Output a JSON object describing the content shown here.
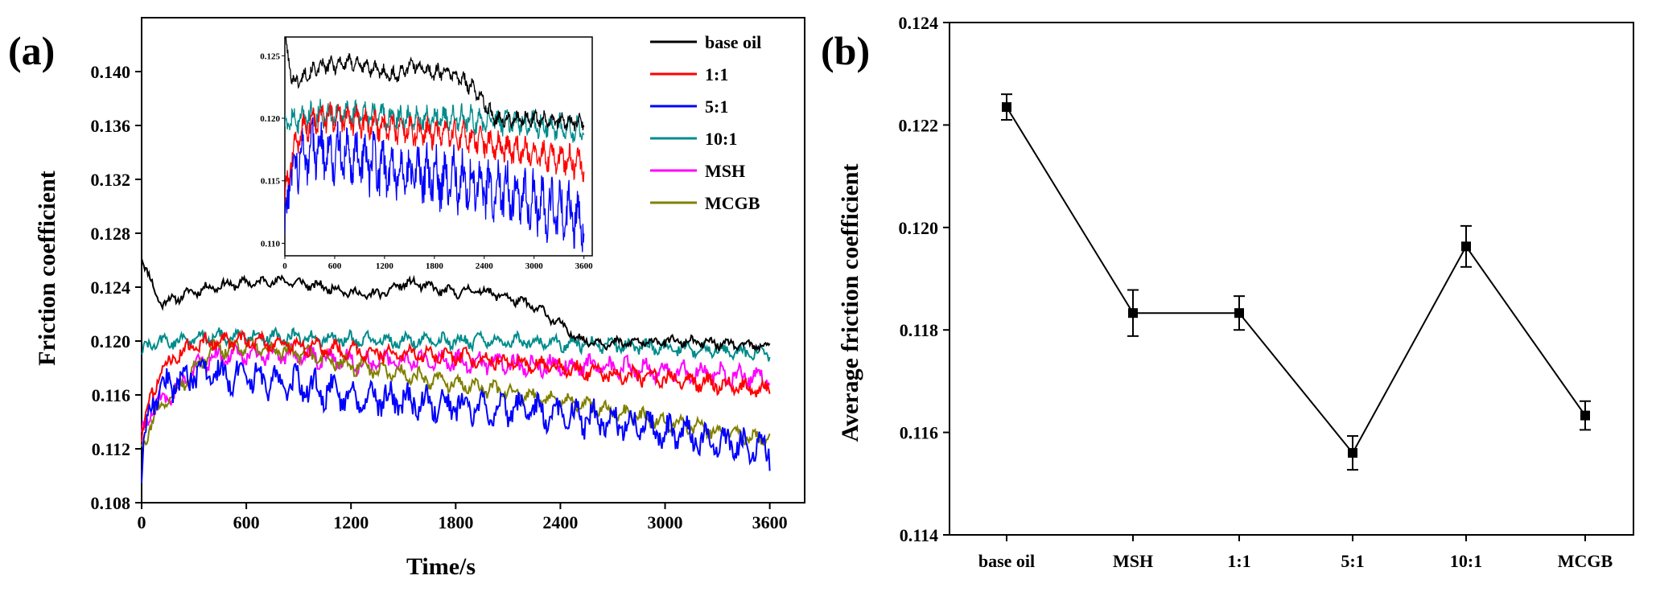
{
  "chart_data": [
    {
      "panel": "(a)",
      "type": "line",
      "title": "",
      "xlabel": "Time/s",
      "ylabel": "Friction coefficient",
      "xlim": [
        0,
        3800
      ],
      "ylim": [
        0.108,
        0.144
      ],
      "xticks": [
        "0",
        "600",
        "1200",
        "1800",
        "2400",
        "3000",
        "3600"
      ],
      "yticks": [
        "0.108",
        "0.112",
        "0.116",
        "0.120",
        "0.124",
        "0.128",
        "0.132",
        "0.136",
        "0.140"
      ],
      "legend_position": "top-right",
      "series": [
        {
          "name": "base oil",
          "color": "#000000",
          "x": [
            0,
            20,
            50,
            80,
            120,
            200,
            300,
            400,
            500,
            600,
            700,
            800,
            900,
            1000,
            1100,
            1200,
            1300,
            1400,
            1500,
            1600,
            1700,
            1800,
            1900,
            2000,
            2100,
            2200,
            2300,
            2400,
            2500,
            2600,
            2700,
            2800,
            2900,
            3000,
            3200,
            3400,
            3600
          ],
          "y": [
            0.1265,
            0.1255,
            0.1245,
            0.1235,
            0.1228,
            0.1232,
            0.1237,
            0.124,
            0.1242,
            0.1243,
            0.1244,
            0.1245,
            0.1243,
            0.1241,
            0.1239,
            0.1236,
            0.1234,
            0.1236,
            0.1243,
            0.1242,
            0.1238,
            0.1236,
            0.1238,
            0.1236,
            0.1232,
            0.1228,
            0.1222,
            0.1212,
            0.1202,
            0.1199,
            0.1198,
            0.1199,
            0.1199,
            0.12,
            0.1199,
            0.1197,
            0.1196
          ],
          "noise": 0.0005
        },
        {
          "name": "1:1",
          "color": "#ff0000",
          "x": [
            0,
            30,
            60,
            100,
            200,
            300,
            400,
            600,
            800,
            1000,
            1200,
            1500,
            1800,
            2100,
            2400,
            2700,
            3000,
            3300,
            3600
          ],
          "y": [
            0.113,
            0.115,
            0.116,
            0.1175,
            0.119,
            0.1196,
            0.12,
            0.12,
            0.1198,
            0.1195,
            0.1193,
            0.119,
            0.1188,
            0.1185,
            0.118,
            0.1175,
            0.1172,
            0.1168,
            0.1163
          ],
          "noise": 0.0008
        },
        {
          "name": "5:1",
          "color": "#0000ff",
          "x": [
            0,
            30,
            60,
            100,
            200,
            300,
            400,
            600,
            800,
            1000,
            1200,
            1500,
            1800,
            2100,
            2400,
            2700,
            3000,
            3300,
            3600
          ],
          "y": [
            0.11,
            0.114,
            0.1158,
            0.1162,
            0.117,
            0.1175,
            0.1176,
            0.1172,
            0.117,
            0.1165,
            0.116,
            0.1155,
            0.1152,
            0.115,
            0.1145,
            0.114,
            0.1132,
            0.1125,
            0.1118
          ],
          "noise": 0.0016
        },
        {
          "name": "10:1",
          "color": "#008b8b",
          "x": [
            0,
            30,
            60,
            100,
            200,
            400,
            600,
            800,
            1000,
            1200,
            1500,
            1800,
            2100,
            2400,
            2700,
            3000,
            3300,
            3600
          ],
          "y": [
            0.119,
            0.1196,
            0.1198,
            0.1199,
            0.12,
            0.1203,
            0.1204,
            0.1203,
            0.1202,
            0.1201,
            0.12,
            0.12,
            0.12,
            0.1198,
            0.1197,
            0.1195,
            0.1193,
            0.119
          ],
          "noise": 0.0007
        },
        {
          "name": "MSH",
          "color": "#ff00ff",
          "x": [
            0,
            30,
            60,
            100,
            200,
            300,
            400,
            600,
            800,
            1000,
            1200,
            1500,
            1800,
            2100,
            2400,
            2700,
            3000,
            3300,
            3600
          ],
          "y": [
            0.113,
            0.114,
            0.115,
            0.1155,
            0.1165,
            0.1178,
            0.1188,
            0.119,
            0.119,
            0.1188,
            0.1185,
            0.1185,
            0.1185,
            0.1183,
            0.1182,
            0.118,
            0.1178,
            0.1175,
            0.1172
          ],
          "noise": 0.001
        },
        {
          "name": "MCGB",
          "color": "#808000",
          "x": [
            0,
            30,
            60,
            100,
            200,
            300,
            400,
            600,
            800,
            1000,
            1200,
            1500,
            1800,
            2100,
            2400,
            2700,
            3000,
            3300,
            3600
          ],
          "y": [
            0.112,
            0.113,
            0.1142,
            0.115,
            0.1163,
            0.1178,
            0.1193,
            0.1196,
            0.1193,
            0.1188,
            0.1182,
            0.1175,
            0.1168,
            0.1162,
            0.1155,
            0.1148,
            0.114,
            0.1133,
            0.1127
          ],
          "noise": 0.0008
        }
      ],
      "inset": {
        "xlim": [
          0,
          3700
        ],
        "ylim": [
          0.109,
          0.1265
        ],
        "xticks": [
          "0",
          "600",
          "1200",
          "1800",
          "2400",
          "3000",
          "3600"
        ],
        "yticks": [
          "0.110",
          "0.115",
          "0.120",
          "0.125"
        ],
        "shows_series": [
          "base oil",
          "1:1",
          "5:1",
          "10:1"
        ]
      }
    },
    {
      "panel": "(b)",
      "type": "line",
      "title": "",
      "xlabel": "",
      "ylabel": "Average friction coefficient",
      "ylim": [
        0.114,
        0.124
      ],
      "yticks": [
        "0.114",
        "0.116",
        "0.118",
        "0.120",
        "0.122",
        "0.124"
      ],
      "categories": [
        "base oil",
        "MSH",
        "1:1",
        "5:1",
        "10:1",
        "MCGB"
      ],
      "values": [
        0.12235,
        0.11833,
        0.11833,
        0.1156,
        0.11963,
        0.11633
      ],
      "errors": [
        0.00025,
        0.00045,
        0.00033,
        0.00033,
        0.0004,
        0.00028
      ],
      "color": "#000000"
    }
  ]
}
